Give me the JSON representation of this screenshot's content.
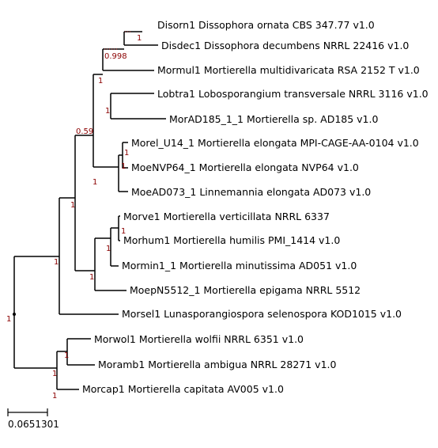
{
  "tree": {
    "taxa": [
      "Disorn1 Dissophora ornata CBS 347.77 v1.0",
      "Disdec1 Dissophora decumbens NRRL 22416 v1.0",
      "Mormul1 Mortierella multidivaricata RSA 2152 T v1.0",
      "Lobtra1 Lobosporangium transversale NRRL 3116 v1.0",
      "MorAD185_1_1 Mortierella sp. AD185 v1.0",
      "Morel_U14_1 Mortierella elongata MPI-CAGE-AA-0104 v1.0",
      "MoeNVP64_1 Mortierella elongata NVP64 v1.0",
      "MoeAD073_1 Linnemannia elongata AD073 v1.0",
      "Morve1 Mortierella verticillata NRRL 6337",
      "Morhum1 Mortierella humilis PMI_1414 v1.0",
      "Mormin1_1 Mortierella minutissima AD051 v1.0",
      "MoepN5512_1 Mortierella epigama NRRL 5512",
      "Morsel1 Lunasporangiospora selenospora KOD1015 v1.0",
      "Morwol1 Mortierella wolfii NRRL 6351 v1.0",
      "Moramb1 Mortierella ambigua NRRL 28271 v1.0",
      "Morcap1 Mortierella capitata AV005 v1.0"
    ],
    "supports": [
      "1",
      "0.998",
      "1",
      "0.59",
      "1",
      "1",
      "1",
      "1",
      "1",
      "1",
      "1",
      "1",
      "1",
      "1",
      "1",
      "1",
      "1"
    ],
    "scale_value": "0.0651301",
    "colors": {
      "branch": "#000000",
      "support": "#8b0000"
    }
  }
}
